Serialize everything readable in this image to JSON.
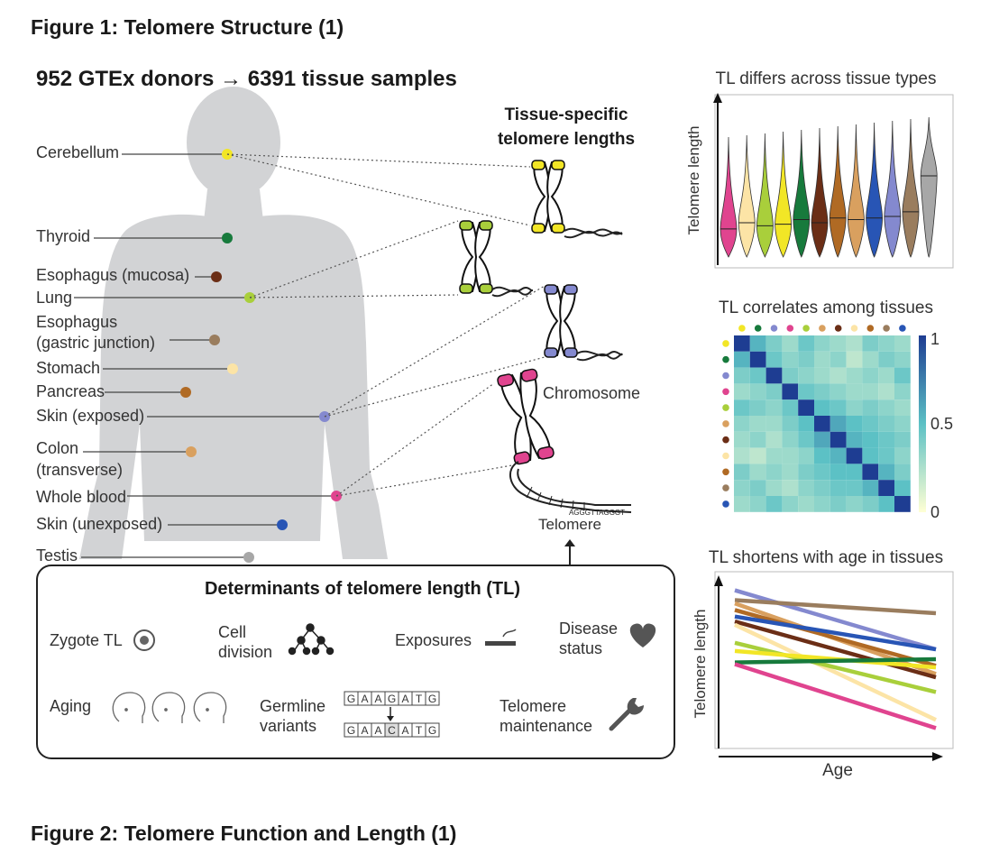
{
  "figure1_heading": "Figure 1: Telomere Structure (1)",
  "figure2_heading": "Figure 2: Telomere Function and Length (1)",
  "top_title": "952 GTEx donors → 6391 tissue samples",
  "tissue_specific_title": [
    "Tissue-specific",
    "telomere lengths"
  ],
  "tissues": [
    {
      "key": "cerebellum",
      "lines": [
        "Cerebellum"
      ],
      "color": "#f2e626"
    },
    {
      "key": "thyroid",
      "lines": [
        "Thyroid"
      ],
      "color": "#177a3c"
    },
    {
      "key": "esoph_mucosa",
      "lines": [
        "Esophagus (mucosa)"
      ],
      "color": "#6b2e16"
    },
    {
      "key": "lung",
      "lines": [
        "Lung"
      ],
      "color": "#a9cf3b"
    },
    {
      "key": "esoph_gastric",
      "lines": [
        "Esophagus",
        "(gastric junction)"
      ],
      "color": "#9a7d5e"
    },
    {
      "key": "stomach",
      "lines": [
        "Stomach"
      ],
      "color": "#fce4a6"
    },
    {
      "key": "pancreas",
      "lines": [
        "Pancreas"
      ],
      "color": "#b06a24"
    },
    {
      "key": "skin_exposed",
      "lines": [
        "Skin (exposed)"
      ],
      "color": "#8489cf"
    },
    {
      "key": "colon",
      "lines": [
        "Colon",
        "(transverse)"
      ],
      "color": "#d9a05f"
    },
    {
      "key": "whole_blood",
      "lines": [
        "Whole blood"
      ],
      "color": "#e0448f"
    },
    {
      "key": "skin_unexposed",
      "lines": [
        "Skin (unexposed)"
      ],
      "color": "#2855b5"
    },
    {
      "key": "testis",
      "lines": [
        "Testis"
      ],
      "color": "#a7a7a7"
    }
  ],
  "chromosome_label": "Chromosome",
  "telomere_label": "Telomere",
  "telomere_seq": "AGGGTTAGGGT",
  "determinants": {
    "title": "Determinants of telomere length (TL)",
    "zygote": "Zygote TL",
    "cell_division": [
      "Cell",
      "division"
    ],
    "exposures": "Exposures",
    "disease_status": [
      "Disease",
      "status"
    ],
    "aging": "Aging",
    "germline": [
      "Germline",
      "variants"
    ],
    "seq_top": [
      "G",
      "A",
      "A",
      "G",
      "A",
      "T",
      "G"
    ],
    "seq_bottom": [
      "G",
      "A",
      "A",
      "C",
      "A",
      "T",
      "G"
    ],
    "telomere_maintenance": [
      "Telomere",
      "maintenance"
    ]
  },
  "panel_violin": {
    "title": "TL differs across tissue types",
    "ylabel": "Telomere length"
  },
  "panel_heatmap": {
    "title": "TL correlates among tissues",
    "scale_labels": [
      "1",
      "0.5",
      "0"
    ]
  },
  "panel_lines": {
    "title": "TL shortens with age in tissues",
    "ylabel": "Telomere length",
    "xlabel": "Age"
  },
  "chart_data": [
    {
      "type": "violin",
      "title": "TL differs across tissue types",
      "ylabel": "Telomere length",
      "series": [
        {
          "color": "#e0448f",
          "median": 0.18
        },
        {
          "color": "#fce4a6",
          "median": 0.22
        },
        {
          "color": "#a9cf3b",
          "median": 0.2
        },
        {
          "color": "#f2e626",
          "median": 0.21
        },
        {
          "color": "#177a3c",
          "median": 0.24
        },
        {
          "color": "#6b2e16",
          "median": 0.22
        },
        {
          "color": "#b06a24",
          "median": 0.25
        },
        {
          "color": "#d9a05f",
          "median": 0.24
        },
        {
          "color": "#2855b5",
          "median": 0.25
        },
        {
          "color": "#8489cf",
          "median": 0.26
        },
        {
          "color": "#9a7d5e",
          "median": 0.29
        },
        {
          "color": "#a7a7a7",
          "median": 0.52
        }
      ]
    },
    {
      "type": "heatmap",
      "title": "TL correlates among tissues",
      "colors": [
        "#f2e626",
        "#177a3c",
        "#8489cf",
        "#e0448f",
        "#a9cf3b",
        "#d9a05f",
        "#6b2e16",
        "#fce4a6",
        "#b06a24",
        "#9a7d5e",
        "#2855b5"
      ],
      "scale": [
        0,
        0.5,
        1
      ],
      "values": [
        [
          1.0,
          0.55,
          0.4,
          0.3,
          0.45,
          0.35,
          0.3,
          0.25,
          0.4,
          0.35,
          0.3
        ],
        [
          0.55,
          1.0,
          0.45,
          0.35,
          0.4,
          0.3,
          0.35,
          0.2,
          0.3,
          0.4,
          0.35
        ],
        [
          0.4,
          0.45,
          1.0,
          0.4,
          0.35,
          0.3,
          0.25,
          0.3,
          0.35,
          0.3,
          0.45
        ],
        [
          0.3,
          0.35,
          0.4,
          1.0,
          0.45,
          0.4,
          0.35,
          0.3,
          0.3,
          0.25,
          0.35
        ],
        [
          0.45,
          0.4,
          0.35,
          0.45,
          1.0,
          0.5,
          0.45,
          0.35,
          0.4,
          0.35,
          0.3
        ],
        [
          0.35,
          0.3,
          0.3,
          0.4,
          0.5,
          1.0,
          0.6,
          0.5,
          0.45,
          0.4,
          0.35
        ],
        [
          0.3,
          0.35,
          0.25,
          0.35,
          0.45,
          0.6,
          1.0,
          0.55,
          0.5,
          0.45,
          0.4
        ],
        [
          0.25,
          0.2,
          0.3,
          0.3,
          0.35,
          0.5,
          0.55,
          1.0,
          0.5,
          0.45,
          0.35
        ],
        [
          0.4,
          0.3,
          0.35,
          0.3,
          0.4,
          0.45,
          0.5,
          0.5,
          1.0,
          0.55,
          0.4
        ],
        [
          0.35,
          0.4,
          0.3,
          0.25,
          0.35,
          0.4,
          0.45,
          0.45,
          0.55,
          1.0,
          0.5
        ],
        [
          0.3,
          0.35,
          0.45,
          0.35,
          0.3,
          0.35,
          0.4,
          0.35,
          0.4,
          0.5,
          1.0
        ]
      ]
    },
    {
      "type": "line",
      "title": "TL shortens with age in tissues",
      "xlabel": "Age",
      "ylabel": "Telomere length",
      "xlim": [
        0,
        1
      ],
      "ylim": [
        0,
        1
      ],
      "series": [
        {
          "color": "#8489cf",
          "y0": 0.92,
          "y1": 0.56
        },
        {
          "color": "#9a7d5e",
          "y0": 0.86,
          "y1": 0.78
        },
        {
          "color": "#d9a05f",
          "y0": 0.84,
          "y1": 0.41
        },
        {
          "color": "#b06a24",
          "y0": 0.8,
          "y1": 0.46
        },
        {
          "color": "#2855b5",
          "y0": 0.76,
          "y1": 0.56
        },
        {
          "color": "#6b2e16",
          "y0": 0.73,
          "y1": 0.39
        },
        {
          "color": "#fce4a6",
          "y0": 0.71,
          "y1": 0.13
        },
        {
          "color": "#a9cf3b",
          "y0": 0.6,
          "y1": 0.3
        },
        {
          "color": "#f2e626",
          "y0": 0.55,
          "y1": 0.45
        },
        {
          "color": "#177a3c",
          "y0": 0.48,
          "y1": 0.5
        },
        {
          "color": "#e0448f",
          "y0": 0.47,
          "y1": 0.08
        }
      ]
    }
  ]
}
